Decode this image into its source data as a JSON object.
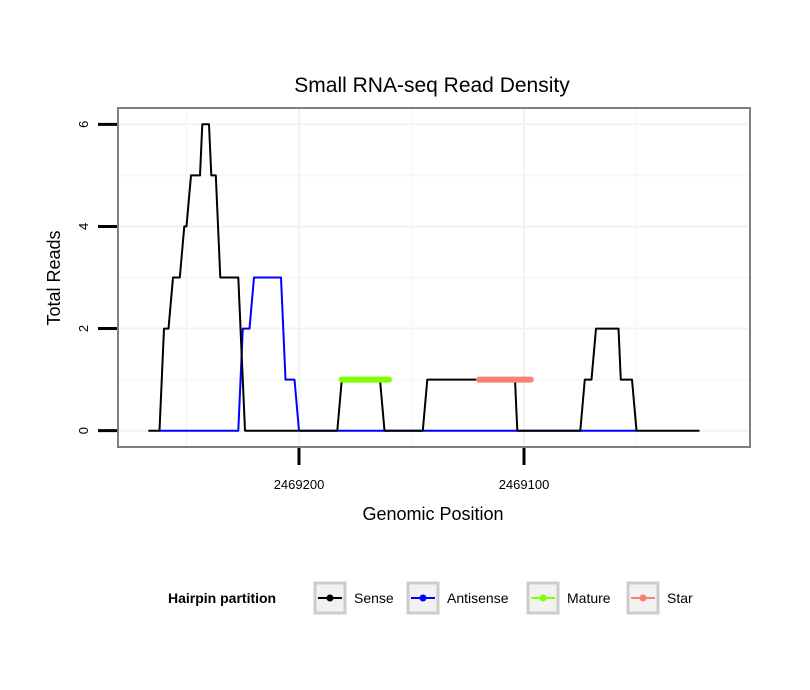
{
  "chart_data": {
    "type": "line",
    "title": "Small RNA-seq Read Density",
    "xlabel": "Genomic Position",
    "ylabel": "Total Reads",
    "x_reversed": true,
    "xlim": [
      2469280,
      2469000
    ],
    "ylim": [
      -0.3,
      6.3
    ],
    "x_ticks": [
      2469200,
      2469100
    ],
    "x_tick_labels": [
      "2469200",
      "2469100"
    ],
    "y_ticks": [
      0,
      2,
      4,
      6
    ],
    "y_tick_labels": [
      "0",
      "2",
      "4",
      "6"
    ],
    "grid": true,
    "legend_title": "Hairpin partition",
    "legend_position": "bottom",
    "series": [
      {
        "name": "Sense",
        "color": "#000000",
        "points": [
          [
            2469267,
            0
          ],
          [
            2469262,
            0
          ],
          [
            2469260,
            2
          ],
          [
            2469258,
            2
          ],
          [
            2469256,
            3
          ],
          [
            2469253,
            3
          ],
          [
            2469251,
            4
          ],
          [
            2469250,
            4
          ],
          [
            2469248,
            5
          ],
          [
            2469244,
            5
          ],
          [
            2469243,
            6
          ],
          [
            2469240,
            6
          ],
          [
            2469239,
            5
          ],
          [
            2469237,
            5
          ],
          [
            2469235,
            3
          ],
          [
            2469227,
            3
          ],
          [
            2469224,
            0
          ],
          [
            2469183,
            0
          ],
          [
            2469181,
            1
          ],
          [
            2469164,
            1
          ],
          [
            2469162,
            0
          ],
          [
            2469145,
            0
          ],
          [
            2469143,
            1
          ],
          [
            2469104,
            1
          ],
          [
            2469103,
            0
          ],
          [
            2469075,
            0
          ],
          [
            2469073,
            1
          ],
          [
            2469070,
            1
          ],
          [
            2469068,
            2
          ],
          [
            2469058,
            2
          ],
          [
            2469057,
            1
          ],
          [
            2469052,
            1
          ],
          [
            2469050,
            0
          ],
          [
            2469045,
            0
          ],
          [
            2469022,
            0
          ]
        ]
      },
      {
        "name": "Antisense",
        "color": "#0000ff",
        "points": [
          [
            2469262,
            0
          ],
          [
            2469227,
            0
          ],
          [
            2469225,
            2
          ],
          [
            2469222,
            2
          ],
          [
            2469220,
            3
          ],
          [
            2469208,
            3
          ],
          [
            2469206,
            1
          ],
          [
            2469202,
            1
          ],
          [
            2469200,
            0
          ],
          [
            2469050,
            0
          ]
        ]
      },
      {
        "name": "Mature",
        "color": "#7fff00",
        "points": [
          [
            2469181,
            1
          ],
          [
            2469160,
            1
          ]
        ]
      },
      {
        "name": "Star",
        "color": "#fa8072",
        "points": [
          [
            2469120,
            1
          ],
          [
            2469097,
            1
          ]
        ]
      }
    ]
  }
}
